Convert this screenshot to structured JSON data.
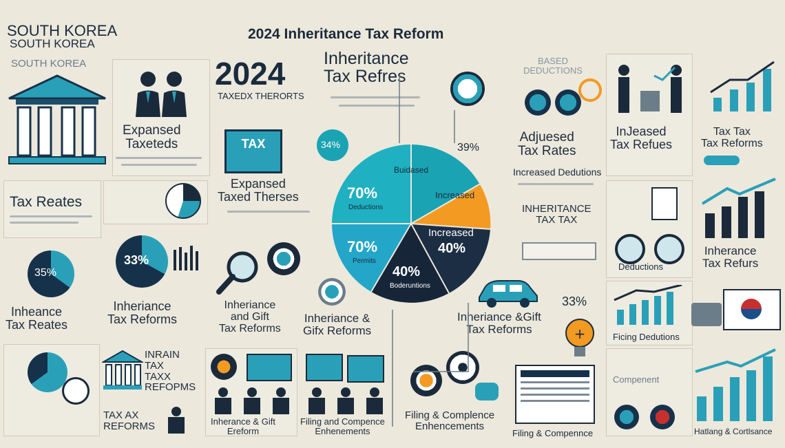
{
  "title": "2024 Inheritance Tax Reform",
  "country": [
    "SOUTH KOREA",
    "SOUTH KOREA",
    "SOUTH KOREA"
  ],
  "year": "2024",
  "year_sub": "TAXEDX THERORTS",
  "head_right": [
    "Inheritance",
    "Tax Refres"
  ],
  "based": [
    "BASED",
    "DEDUCTIONS"
  ],
  "labels": {
    "expansed1": [
      "Expansed",
      "Taxeteds"
    ],
    "expansed2": [
      "Expansed",
      "Taxed Therses"
    ],
    "tax_card": "TAX",
    "tax_rates_left": "Tax Reates",
    "inheance_rates": [
      "Inheance",
      "Tax Reates"
    ],
    "inherit_reforms1": [
      "Inheriance",
      "Tax Reforms"
    ],
    "inherit_gift": [
      "Inheriance",
      "and Gift",
      "Tax Reforms"
    ],
    "inherit_gifx": [
      "Inheriance &",
      "Gifx Reforms"
    ],
    "adjuesed": [
      "Adjuesed",
      "Tax Rates"
    ],
    "increased_ded": "Increased Dedutions",
    "inheritance_tax": [
      "INHERITANCE",
      "TAX TAX"
    ],
    "inhe_gift2": [
      "Inheriance &Gift",
      "Tax Reforms"
    ],
    "injeased": [
      "InJeased",
      "Tax Refues"
    ],
    "tax_tax": [
      "Tax Tax",
      "Tax Reforms"
    ],
    "inherance_refurs": [
      "Inherance",
      "Tax Refurs"
    ],
    "deduct": "Deductions",
    "ficing": "Ficing Dedutions",
    "inrain": [
      "INRAIN",
      "TAX",
      "TAXX",
      "REFOPMS"
    ],
    "taxax": [
      "TAX AX",
      "REFORMS"
    ],
    "inherance_gift_bot": [
      "Inherance & Gift",
      "Ereform"
    ],
    "filing_bot": [
      "Filing and Compence",
      "Enhenements"
    ],
    "filing_compl": [
      "Filing & Complence",
      "Enhencements"
    ],
    "filing_comp2": "Filing & Compennce",
    "hatlang": "Hatlang & Cortlsance",
    "compenent": "Compenent"
  },
  "percents": {
    "p34": "34%",
    "p39": "39%",
    "p35": "35%",
    "p33": "33%",
    "p33b": "33%"
  },
  "pie": {
    "slices": [
      {
        "label": "Buidased",
        "value": "",
        "color": "#1aa3b3"
      },
      {
        "label": "Increased",
        "value": "",
        "color": "#f39a22"
      },
      {
        "label": "Increased",
        "value": "40%",
        "color": "#1c2e44"
      },
      {
        "label": "Boderuntions",
        "value": "40%",
        "color": "#162538"
      },
      {
        "label": "Permits",
        "value": "70%",
        "color": "#23a6c8"
      },
      {
        "label": "Deductions",
        "value": "70%",
        "color": "#1fb0c1"
      }
    ]
  },
  "colors": {
    "teal": "#1aa3b3",
    "navy": "#1c2e44",
    "orange": "#f39a22",
    "bg": "#ece8dc"
  }
}
